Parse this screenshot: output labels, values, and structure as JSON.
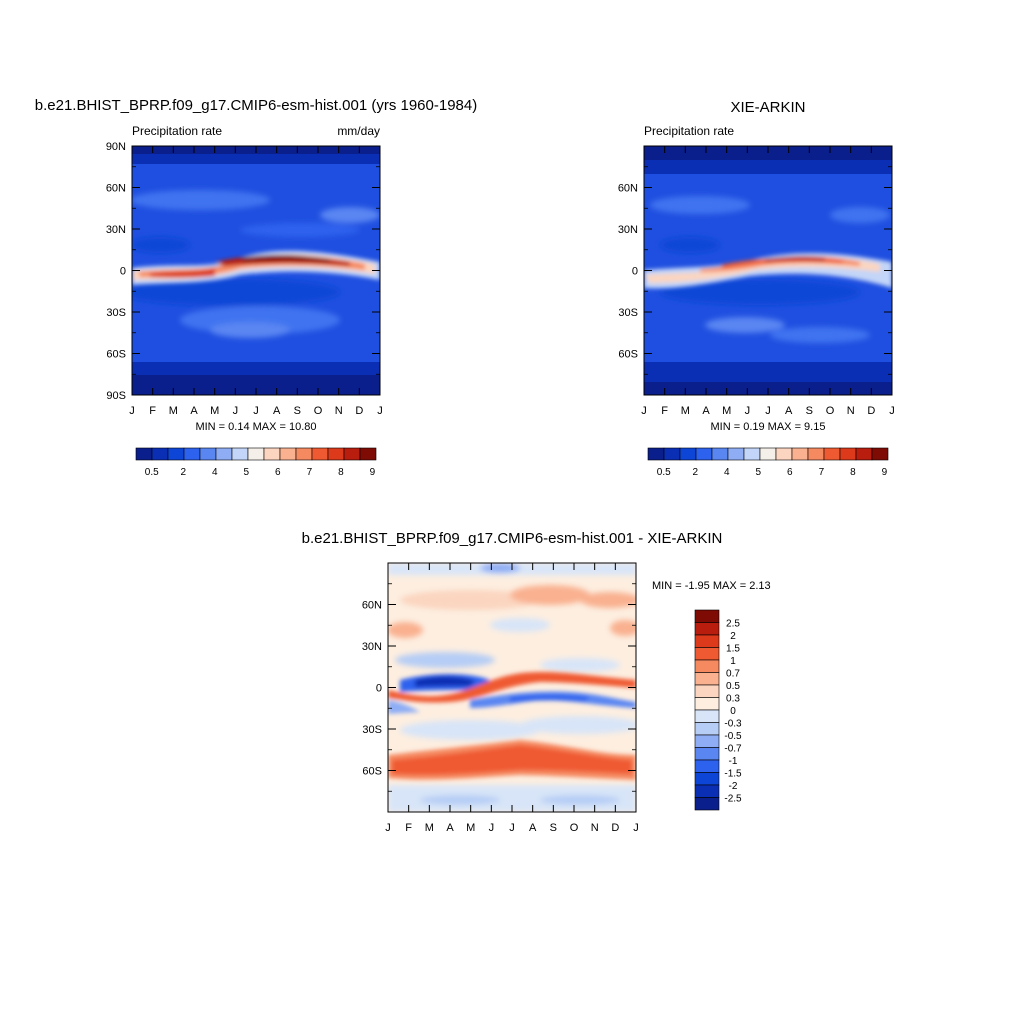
{
  "chart_data": [
    {
      "type": "heatmap",
      "id": "model",
      "title": "b.e21.BHIST_BPRP.f09_g17.CMIP6-esm-hist.001 (yrs 1960-1984)",
      "subtitle_left": "Precipitation rate",
      "subtitle_right": "mm/day",
      "x_tick_labels": [
        "J",
        "F",
        "M",
        "A",
        "M",
        "J",
        "J",
        "A",
        "S",
        "O",
        "N",
        "D",
        "J"
      ],
      "y_tick_labels": [
        "90N",
        "60N",
        "30N",
        "0",
        "30S",
        "60S",
        "90S"
      ],
      "y_tick_values": [
        90,
        60,
        30,
        0,
        -30,
        -60,
        -90
      ],
      "ylim": [
        -90,
        90
      ],
      "stats_text": "MIN =   0.14 MAX =   10.80",
      "min": 0.14,
      "max": 10.8,
      "colorbar": {
        "orientation": "horizontal",
        "labels": [
          "0.5",
          "2",
          "4",
          "5",
          "6",
          "7",
          "8",
          "9"
        ],
        "colors": [
          "#0a1e8c",
          "#0b2fb4",
          "#0d46d6",
          "#2d62ee",
          "#5a86f2",
          "#8eadf5",
          "#c3d5f8",
          "#f4efe9",
          "#fbd5c0",
          "#f9b190",
          "#f58960",
          "#ef5a32",
          "#dc3a1a",
          "#b81d0e",
          "#7f0b05"
        ]
      }
    },
    {
      "type": "heatmap",
      "id": "obs",
      "title": "XIE-ARKIN",
      "subtitle_left": "Precipitation rate",
      "x_tick_labels": [
        "J",
        "F",
        "M",
        "A",
        "M",
        "J",
        "J",
        "A",
        "S",
        "O",
        "N",
        "D",
        "J"
      ],
      "y_tick_labels": [
        "60N",
        "30N",
        "0",
        "30S",
        "60S"
      ],
      "y_tick_values": [
        60,
        30,
        0,
        -30,
        -60
      ],
      "ylim": [
        -90,
        90
      ],
      "stats_text": "MIN =   0.19 MAX =   9.15",
      "min": 0.19,
      "max": 9.15,
      "colorbar": {
        "orientation": "horizontal",
        "labels": [
          "0.5",
          "2",
          "4",
          "5",
          "6",
          "7",
          "8",
          "9"
        ],
        "colors": [
          "#0a1e8c",
          "#0b2fb4",
          "#0d46d6",
          "#2d62ee",
          "#5a86f2",
          "#8eadf5",
          "#c3d5f8",
          "#f4efe9",
          "#fbd5c0",
          "#f9b190",
          "#f58960",
          "#ef5a32",
          "#dc3a1a",
          "#b81d0e",
          "#7f0b05"
        ]
      }
    },
    {
      "type": "heatmap",
      "id": "diff",
      "title": "b.e21.BHIST_BPRP.f09_g17.CMIP6-esm-hist.001 - XIE-ARKIN",
      "x_tick_labels": [
        "J",
        "F",
        "M",
        "A",
        "M",
        "J",
        "J",
        "A",
        "S",
        "O",
        "N",
        "D",
        "J"
      ],
      "y_tick_labels": [
        "60N",
        "30N",
        "0",
        "30S",
        "60S"
      ],
      "y_tick_values": [
        60,
        30,
        0,
        -30,
        -60
      ],
      "ylim": [
        -90,
        90
      ],
      "stats_text": "MIN =  -1.95 MAX =   2.13",
      "min": -1.95,
      "max": 2.13,
      "colorbar": {
        "orientation": "vertical",
        "labels": [
          "2.5",
          "2",
          "1.5",
          "1",
          "0.7",
          "0.5",
          "0.3",
          "0",
          "-0.3",
          "-0.5",
          "-0.7",
          "-1",
          "-1.5",
          "-2",
          "-2.5"
        ],
        "colors": [
          "#7f0b05",
          "#b81d0e",
          "#dc3a1a",
          "#ef5a32",
          "#f58960",
          "#f9b190",
          "#fbd5c0",
          "#fdeee0",
          "#d8e5f8",
          "#b6cdf5",
          "#8eadf5",
          "#5a86f2",
          "#2d62ee",
          "#0d46d6",
          "#0b2fb4",
          "#0a1e8c"
        ]
      }
    }
  ]
}
